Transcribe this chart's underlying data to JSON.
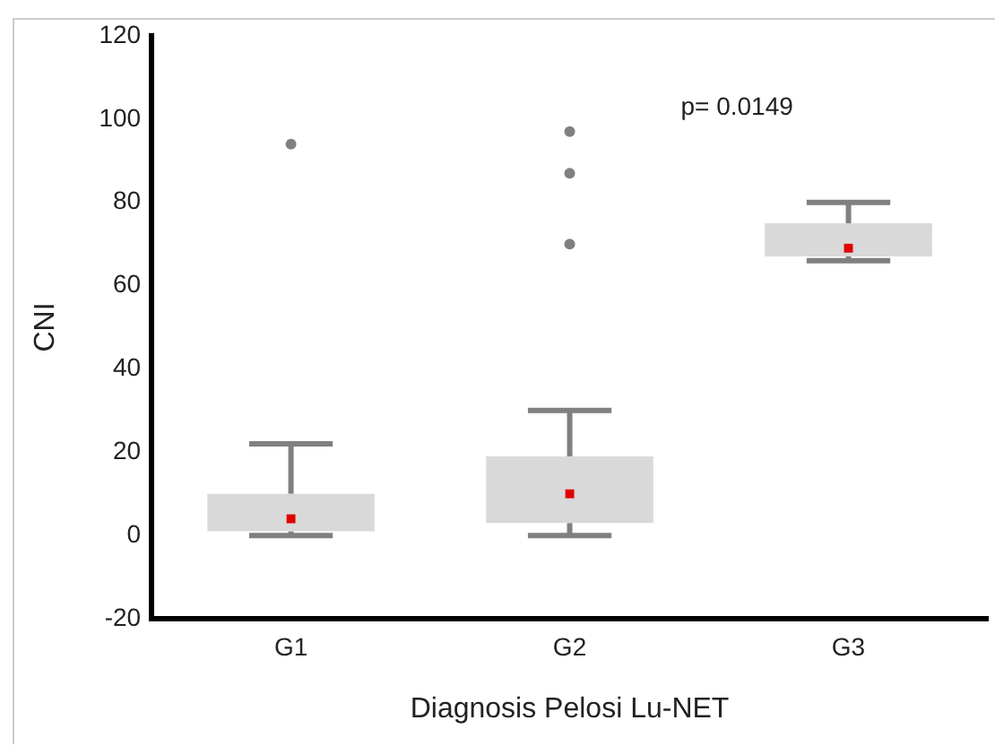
{
  "chart_data": {
    "type": "box",
    "xlabel": "Diagnosis Pelosi Lu-NET",
    "ylabel": "CNI",
    "categories": [
      "G1",
      "G2",
      "G3"
    ],
    "ylim": [
      -20,
      120
    ],
    "yticks": [
      -20,
      0,
      20,
      40,
      60,
      80,
      100,
      120
    ],
    "grid": false,
    "legend": false,
    "annotations": [
      "p= 0.0149"
    ],
    "series": [
      {
        "color": "#d9d9d9",
        "boxes": [
          {
            "low": 0,
            "q1": 1,
            "median": 4,
            "q3": 10,
            "high": 22,
            "outliers": [
              94
            ]
          },
          {
            "low": 0,
            "q1": 3,
            "median": 10,
            "q3": 19,
            "high": 30,
            "outliers": [
              70,
              87,
              97
            ]
          },
          {
            "low": 66,
            "q1": 67,
            "median": 69,
            "q3": 75,
            "high": 80
          }
        ]
      }
    ]
  }
}
